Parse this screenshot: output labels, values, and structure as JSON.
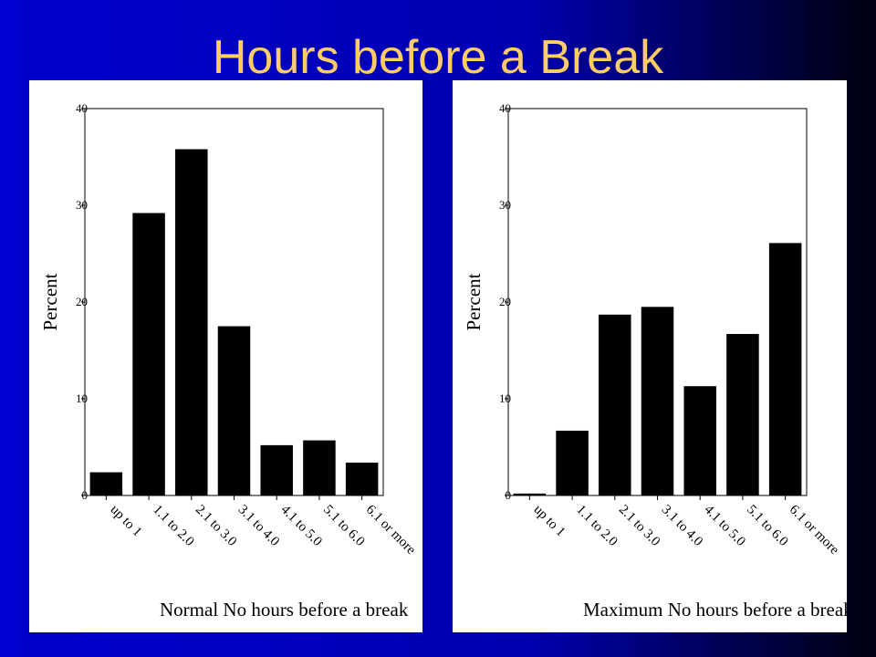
{
  "title": "Hours before a Break",
  "chart_data": [
    {
      "type": "bar",
      "x_label": "Normal No hours before a break",
      "y_label": "Percent",
      "categories": [
        "up to 1",
        "1.1 to 2.0",
        "2.1 to 3.0",
        "3.1 to 4.0",
        "4.1 to 5.0",
        "5.1 to 6.0",
        "6.1 or more"
      ],
      "values": [
        2.4,
        29.2,
        35.8,
        17.5,
        5.2,
        5.7,
        3.4
      ],
      "color": "#000000",
      "ylim": [
        0,
        40
      ],
      "yticks": [
        0,
        10,
        20,
        30,
        40
      ]
    },
    {
      "type": "bar",
      "x_label": "Maximum No hours before a break",
      "y_label": "Percent",
      "categories": [
        "up to 1",
        "1.1 to 2.0",
        "2.1 to 3.0",
        "3.1 to 4.0",
        "4.1 to 5.0",
        "5.1 to 6.0",
        "6.1 or more"
      ],
      "values": [
        0.2,
        6.7,
        18.7,
        19.5,
        11.3,
        16.7,
        26.1
      ],
      "color": "#000000",
      "ylim": [
        0,
        40
      ],
      "yticks": [
        0,
        10,
        20,
        30,
        40
      ]
    }
  ]
}
